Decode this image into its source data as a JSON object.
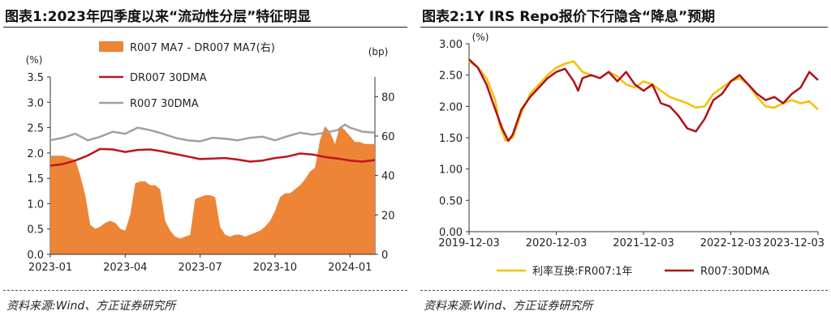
{
  "left": {
    "title": "图表1:2023年四季度以来“流动性分层”特征明显",
    "source": "资料来源:Wind、方正证券研究所",
    "chart_data": {
      "type": "line",
      "left_axis_unit": "(%)",
      "right_axis_unit": "(bp)",
      "ylim_left": [
        0,
        3.5
      ],
      "ylim_right": [
        0,
        90
      ],
      "left_ticks": [
        "0.0",
        "0.5",
        "1.0",
        "1.5",
        "2.0",
        "2.5",
        "3.0",
        "3.5"
      ],
      "right_ticks": [
        "0",
        "20",
        "40",
        "60",
        "80"
      ],
      "x_ticks": [
        "2023-01",
        "2023-04",
        "2023-07",
        "2023-10",
        "2024-01"
      ],
      "x_tick_pos": [
        0.0,
        3.0,
        6.0,
        9.0,
        12.0
      ],
      "xlim": [
        0.0,
        13.0
      ],
      "legend_position": "top-center",
      "series": [
        {
          "name": "R007 MA7 - DR007 MA7(右)",
          "type": "area",
          "axis": "right",
          "color": "#ed8436",
          "x": [
            0.0,
            0.5,
            1.0,
            1.2,
            1.4,
            1.6,
            1.8,
            2.0,
            2.2,
            2.4,
            2.6,
            2.8,
            3.0,
            3.2,
            3.4,
            3.6,
            3.8,
            4.0,
            4.2,
            4.4,
            4.6,
            4.8,
            5.0,
            5.2,
            5.4,
            5.6,
            5.8,
            6.0,
            6.2,
            6.4,
            6.6,
            6.8,
            7.0,
            7.2,
            7.4,
            7.6,
            7.8,
            8.0,
            8.2,
            8.4,
            8.6,
            8.8,
            9.0,
            9.2,
            9.4,
            9.6,
            9.8,
            10.0,
            10.2,
            10.4,
            10.6,
            10.8,
            11.0,
            11.2,
            11.4,
            11.6,
            11.8,
            12.0,
            12.2,
            12.4,
            12.6,
            12.8,
            13.0
          ],
          "values": [
            50,
            50,
            48,
            40,
            30,
            15,
            13,
            14,
            16,
            17,
            16,
            13,
            12,
            20,
            36,
            37,
            37,
            35,
            35,
            33,
            17,
            12,
            9,
            8,
            9,
            10,
            28,
            29,
            30,
            30,
            29,
            14,
            10,
            9,
            10,
            10,
            9,
            10,
            11,
            12,
            14,
            17,
            22,
            29,
            31,
            31,
            33,
            35,
            38,
            42,
            44,
            58,
            65,
            62,
            56,
            65,
            63,
            60,
            57,
            57,
            56,
            56,
            56
          ]
        },
        {
          "name": "DR007 30DMA",
          "type": "line",
          "axis": "left",
          "color": "#c0141c",
          "x": [
            0.0,
            0.5,
            1.0,
            1.5,
            2.0,
            2.5,
            3.0,
            3.5,
            4.0,
            4.5,
            5.0,
            5.5,
            6.0,
            6.5,
            7.0,
            7.5,
            8.0,
            8.5,
            9.0,
            9.5,
            10.0,
            10.5,
            11.0,
            11.5,
            12.0,
            12.5,
            13.0
          ],
          "values": [
            1.75,
            1.78,
            1.85,
            1.95,
            2.08,
            2.07,
            2.02,
            2.06,
            2.07,
            2.03,
            1.98,
            1.93,
            1.88,
            1.89,
            1.9,
            1.87,
            1.83,
            1.85,
            1.9,
            1.93,
            1.99,
            1.97,
            1.92,
            1.89,
            1.85,
            1.83,
            1.86
          ]
        },
        {
          "name": "R007 30DMA",
          "type": "line",
          "axis": "left",
          "color": "#a0a0a0",
          "x": [
            0.0,
            0.5,
            1.0,
            1.5,
            2.0,
            2.5,
            3.0,
            3.5,
            4.0,
            4.5,
            5.0,
            5.5,
            6.0,
            6.5,
            7.0,
            7.5,
            8.0,
            8.5,
            9.0,
            9.5,
            10.0,
            10.5,
            11.0,
            11.5,
            11.8,
            12.0,
            12.5,
            13.0
          ],
          "values": [
            2.25,
            2.3,
            2.38,
            2.25,
            2.32,
            2.42,
            2.38,
            2.5,
            2.45,
            2.38,
            2.3,
            2.25,
            2.23,
            2.3,
            2.28,
            2.25,
            2.3,
            2.32,
            2.25,
            2.33,
            2.4,
            2.36,
            2.4,
            2.45,
            2.56,
            2.5,
            2.42,
            2.4
          ]
        }
      ]
    }
  },
  "right": {
    "title": "图表2:1Y IRS Repo报价下行隐含“降息”预期",
    "source": "资料来源:Wind、方正证券研究所",
    "chart_data": {
      "type": "line",
      "axis_unit": "(%)",
      "ylim": [
        0,
        3
      ],
      "y_ticks": [
        "0.00",
        "0.50",
        "1.00",
        "1.50",
        "2.00",
        "2.50",
        "3.00"
      ],
      "x_ticks": [
        "2019-12-03",
        "2020-12-03",
        "2021-12-03",
        "2022-12-03",
        "2023-12-03"
      ],
      "x_tick_pos": [
        0.0,
        1.0,
        2.0,
        3.0,
        4.0
      ],
      "xlim": [
        0.0,
        4.0
      ],
      "legend_position": "bottom",
      "series": [
        {
          "name": "利率互换:FR007:1年",
          "color": "#f5c000",
          "x": [
            0.0,
            0.1,
            0.2,
            0.3,
            0.35,
            0.42,
            0.5,
            0.6,
            0.7,
            0.8,
            0.9,
            1.0,
            1.1,
            1.2,
            1.3,
            1.4,
            1.5,
            1.6,
            1.7,
            1.8,
            1.9,
            2.0,
            2.1,
            2.2,
            2.3,
            2.4,
            2.5,
            2.6,
            2.7,
            2.8,
            2.9,
            3.0,
            3.1,
            3.2,
            3.3,
            3.4,
            3.5,
            3.6,
            3.7,
            3.8,
            3.9,
            4.0
          ],
          "values": [
            2.72,
            2.62,
            2.45,
            2.1,
            1.7,
            1.45,
            1.5,
            1.9,
            2.2,
            2.35,
            2.5,
            2.62,
            2.68,
            2.72,
            2.55,
            2.5,
            2.45,
            2.55,
            2.48,
            2.35,
            2.3,
            2.4,
            2.35,
            2.25,
            2.15,
            2.1,
            2.05,
            1.98,
            2.0,
            2.2,
            2.3,
            2.4,
            2.45,
            2.35,
            2.15,
            2.0,
            1.98,
            2.05,
            2.1,
            2.05,
            2.08,
            1.95
          ]
        },
        {
          "name": "R007:30DMA",
          "color": "#b0101a",
          "x": [
            0.0,
            0.1,
            0.2,
            0.3,
            0.38,
            0.45,
            0.5,
            0.6,
            0.7,
            0.8,
            0.9,
            1.0,
            1.1,
            1.2,
            1.25,
            1.3,
            1.4,
            1.5,
            1.6,
            1.7,
            1.8,
            1.9,
            2.0,
            2.1,
            2.2,
            2.3,
            2.4,
            2.5,
            2.6,
            2.7,
            2.8,
            2.9,
            3.0,
            3.1,
            3.2,
            3.3,
            3.4,
            3.5,
            3.6,
            3.7,
            3.8,
            3.9,
            4.0
          ],
          "values": [
            2.75,
            2.62,
            2.35,
            1.95,
            1.65,
            1.45,
            1.55,
            1.95,
            2.15,
            2.3,
            2.45,
            2.55,
            2.6,
            2.4,
            2.25,
            2.45,
            2.5,
            2.45,
            2.55,
            2.4,
            2.55,
            2.35,
            2.25,
            2.35,
            2.05,
            2.0,
            1.85,
            1.65,
            1.6,
            1.8,
            2.1,
            2.2,
            2.4,
            2.5,
            2.35,
            2.2,
            2.1,
            2.15,
            2.05,
            2.2,
            2.3,
            2.55,
            2.42
          ]
        }
      ]
    }
  }
}
